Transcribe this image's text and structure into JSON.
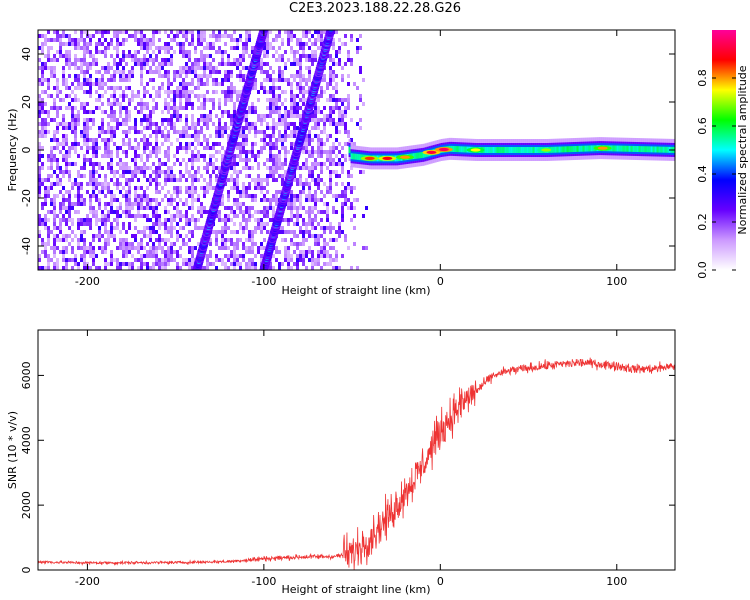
{
  "title": "C2E3.2023.188.22.28.G26",
  "chart_data": [
    {
      "type": "heatmap",
      "xlabel": "Height of straight line (km)",
      "ylabel": "Frequency (Hz)",
      "xlim": [
        -228,
        133
      ],
      "ylim": [
        -50,
        50
      ],
      "xticks": [
        -200,
        -100,
        0,
        100
      ],
      "yticks": [
        -40,
        -20,
        0,
        20,
        40
      ],
      "colorbar": {
        "label": "Normalized spectral amplitude",
        "range": [
          0,
          1
        ],
        "ticks": [
          0.0,
          0.2,
          0.4,
          0.6,
          0.8
        ],
        "colors": [
          "#ffffff",
          "#cc99ff",
          "#6600ff",
          "#0000ff",
          "#00ffff",
          "#00ff00",
          "#ffff00",
          "#ff0000",
          "#ff0099"
        ]
      },
      "features": {
        "noise_region_km": [
          -228,
          -50
        ],
        "streaks": [
          {
            "x_start": -138,
            "y_start": -50,
            "x_end": -100,
            "y_end": 50
          },
          {
            "x_start": -100,
            "y_start": -50,
            "x_end": -62,
            "y_end": 50
          }
        ],
        "carrier_line": {
          "start_km": -52,
          "points": [
            [
              -52,
              -2.5
            ],
            [
              -40,
              -3.5
            ],
            [
              -25,
              -3.5
            ],
            [
              -10,
              -2
            ],
            [
              0,
              0
            ],
            [
              5,
              0.5
            ],
            [
              20,
              0
            ],
            [
              40,
              0
            ],
            [
              60,
              0
            ],
            [
              90,
              0.8
            ],
            [
              133,
              0
            ]
          ]
        }
      }
    },
    {
      "type": "line",
      "xlabel": "Height of straight line (km)",
      "ylabel": "SNR (10 * v/v)",
      "xlim": [
        -228,
        133
      ],
      "ylim": [
        0,
        7400
      ],
      "xticks": [
        -200,
        -100,
        0,
        100
      ],
      "yticks": [
        0,
        2000,
        4000,
        6000
      ],
      "color": "#ee3333",
      "series": [
        {
          "x": [
            -228,
            -200,
            -150,
            -120,
            -100,
            -80,
            -60,
            -50,
            -40,
            -30,
            -20,
            -10,
            0,
            10,
            20,
            30,
            40,
            60,
            80,
            90,
            100,
            110,
            120,
            133
          ],
          "values": [
            250,
            220,
            230,
            260,
            350,
            400,
            420,
            500,
            1000,
            1600,
            2400,
            3200,
            4300,
            5000,
            5500,
            6000,
            6150,
            6300,
            6400,
            6350,
            6300,
            6200,
            6200,
            6300
          ]
        }
      ]
    }
  ]
}
